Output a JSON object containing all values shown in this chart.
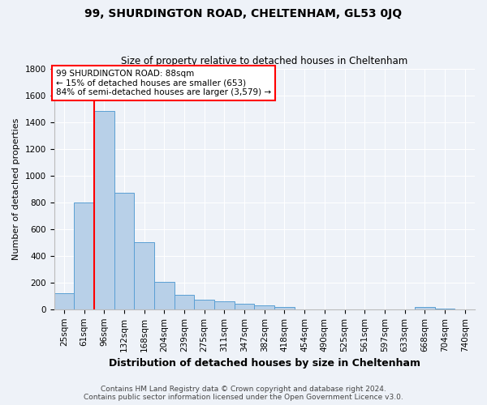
{
  "title1": "99, SHURDINGTON ROAD, CHELTENHAM, GL53 0JQ",
  "title2": "Size of property relative to detached houses in Cheltenham",
  "xlabel": "Distribution of detached houses by size in Cheltenham",
  "ylabel": "Number of detached properties",
  "categories": [
    "25sqm",
    "61sqm",
    "96sqm",
    "132sqm",
    "168sqm",
    "204sqm",
    "239sqm",
    "275sqm",
    "311sqm",
    "347sqm",
    "382sqm",
    "418sqm",
    "454sqm",
    "490sqm",
    "525sqm",
    "561sqm",
    "597sqm",
    "633sqm",
    "668sqm",
    "704sqm",
    "740sqm"
  ],
  "values": [
    120,
    800,
    1480,
    870,
    500,
    205,
    110,
    70,
    60,
    40,
    30,
    20,
    0,
    0,
    0,
    0,
    0,
    0,
    15,
    5,
    0
  ],
  "bar_color": "#b8d0e8",
  "bar_edge_color": "#5a9fd4",
  "property_line_x": 1.5,
  "annotation_line1": "99 SHURDINGTON ROAD: 88sqm",
  "annotation_line2": "← 15% of detached houses are smaller (653)",
  "annotation_line3": "84% of semi-detached houses are larger (3,579) →",
  "annotation_box_facecolor": "white",
  "annotation_box_edgecolor": "red",
  "red_line_color": "red",
  "ylim": [
    0,
    1800
  ],
  "yticks": [
    0,
    200,
    400,
    600,
    800,
    1000,
    1200,
    1400,
    1600,
    1800
  ],
  "footer1": "Contains HM Land Registry data © Crown copyright and database right 2024.",
  "footer2": "Contains public sector information licensed under the Open Government Licence v3.0.",
  "bg_color": "#eef2f8",
  "grid_color": "#ffffff",
  "title1_fontsize": 10,
  "title2_fontsize": 8.5,
  "ylabel_fontsize": 8,
  "xlabel_fontsize": 9,
  "tick_fontsize": 7.5,
  "footer_fontsize": 6.5
}
